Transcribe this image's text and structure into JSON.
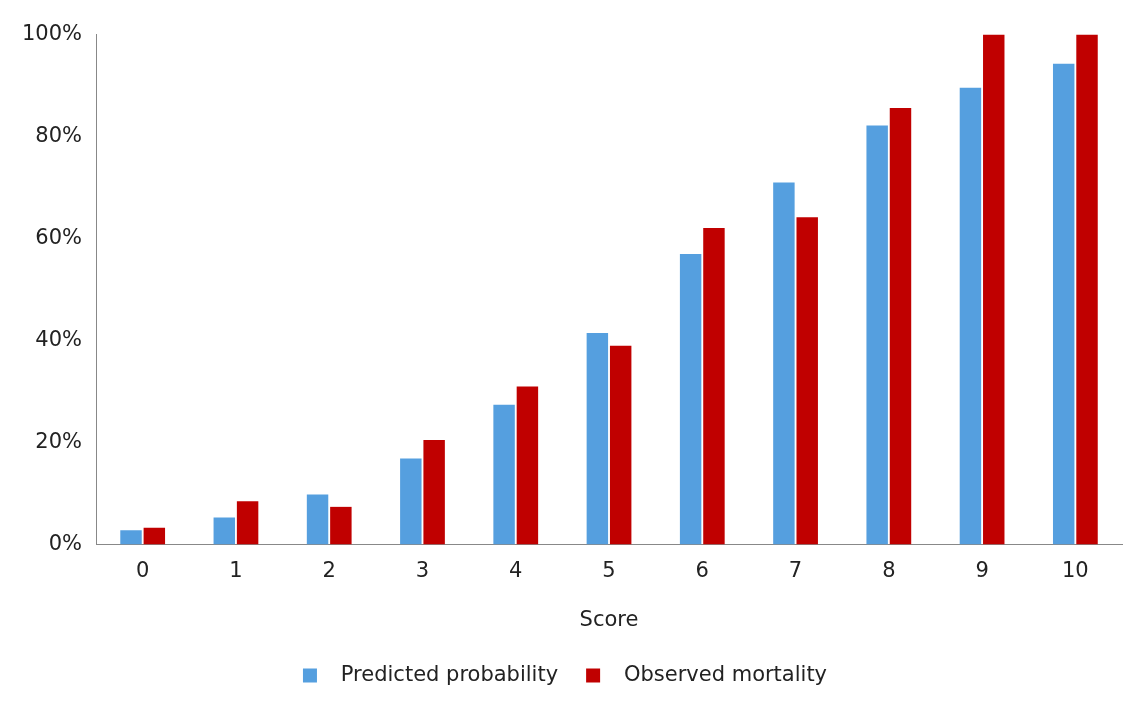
{
  "chart_data": {
    "type": "bar",
    "xlabel": "Score",
    "categories": [
      "0",
      "1",
      "2",
      "3",
      "4",
      "5",
      "6",
      "7",
      "8",
      "9",
      "10"
    ],
    "series": [
      {
        "name": "Predicted probability",
        "color": "#559fdf",
        "values": [
          2.8,
          5.3,
          9.8,
          16.9,
          27.4,
          41.5,
          57.0,
          71.0,
          82.2,
          89.6,
          94.3
        ]
      },
      {
        "name": "Observed mortality",
        "color": "#c00000",
        "values": [
          3.3,
          8.5,
          7.4,
          20.5,
          31.0,
          39.0,
          62.1,
          64.2,
          85.6,
          100,
          100
        ]
      }
    ],
    "ylim": [
      0,
      100
    ],
    "yticks": [
      {
        "value": 0,
        "label": "0%"
      },
      {
        "value": 20,
        "label": "20%"
      },
      {
        "value": 40,
        "label": "40%"
      },
      {
        "value": 60,
        "label": "60%"
      },
      {
        "value": 80,
        "label": "80%"
      },
      {
        "value": 100,
        "label": "100%"
      }
    ],
    "grid": false,
    "legend": "bottom"
  }
}
